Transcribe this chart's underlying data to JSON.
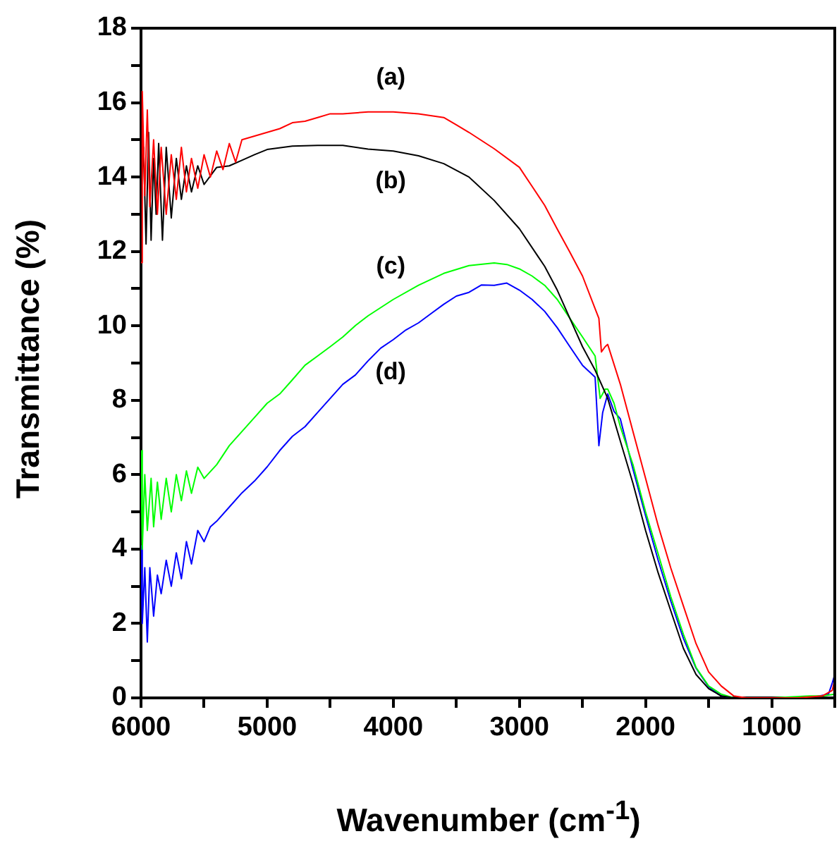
{
  "chart_data": {
    "type": "line",
    "xlabel": "Wavenumber (cm$^{-1}$)",
    "ylabel": "Transmittance (%)",
    "xlim": [
      6000,
      500
    ],
    "ylim": [
      0,
      18
    ],
    "xticks": [
      6000,
      {
        "value": 5500,
        "label": null
      },
      5000,
      {
        "value": 4500,
        "label": null
      },
      4000,
      {
        "value": 3500,
        "label": null
      },
      3000,
      {
        "value": 2500,
        "label": null
      },
      2000,
      {
        "value": 1500,
        "label": null
      },
      1000,
      {
        "value": 500,
        "label": null
      }
    ],
    "yticks": [
      0,
      {
        "value": 1,
        "label": null
      },
      2,
      {
        "value": 3,
        "label": null
      },
      4,
      {
        "value": 5,
        "label": null
      },
      6,
      {
        "value": 7,
        "label": null
      },
      8,
      {
        "value": 9,
        "label": null
      },
      10,
      {
        "value": 11,
        "label": null
      },
      12,
      {
        "value": 13,
        "label": null
      },
      14,
      {
        "value": 15,
        "label": null
      },
      16,
      {
        "value": 17,
        "label": null
      },
      18
    ],
    "grid": false,
    "legend": false,
    "series": [
      {
        "name": "(a)",
        "color": "#ff0000",
        "x": [
          6000,
          5990,
          5970,
          5950,
          5930,
          5900,
          5870,
          5840,
          5800,
          5760,
          5720,
          5680,
          5640,
          5600,
          5550,
          5500,
          5450,
          5400,
          5350,
          5300,
          5250,
          5200,
          5100,
          5000,
          4900,
          4800,
          4700,
          4600,
          4500,
          4400,
          4200,
          4000,
          3800,
          3600,
          3500,
          3400,
          3200,
          3000,
          2900,
          2800,
          2700,
          2600,
          2500,
          2400,
          2370,
          2350,
          2320,
          2300,
          2200,
          2100,
          2000,
          1900,
          1800,
          1700,
          1600,
          1500,
          1400,
          1300,
          1200,
          1000,
          800,
          600,
          520,
          500
        ],
        "values": [
          11.7,
          16.3,
          13.5,
          15.8,
          13.2,
          15.0,
          13.0,
          14.8,
          13.0,
          14.6,
          13.4,
          14.8,
          13.6,
          14.5,
          13.7,
          14.6,
          14.0,
          14.7,
          14.2,
          14.9,
          14.4,
          15.0,
          15.1,
          15.2,
          15.3,
          15.46,
          15.5,
          15.6,
          15.7,
          15.7,
          15.75,
          15.75,
          15.7,
          15.6,
          15.4,
          15.2,
          14.76,
          14.26,
          13.75,
          13.24,
          12.6,
          11.98,
          11.34,
          10.46,
          10.2,
          9.3,
          9.44,
          9.5,
          8.43,
          7.16,
          5.9,
          4.63,
          3.49,
          2.47,
          1.46,
          0.7,
          0.32,
          0.05,
          0,
          0,
          0,
          0.05,
          0.2,
          0.5
        ]
      },
      {
        "name": "(b)",
        "color": "#000000",
        "x": [
          6000,
          5980,
          5960,
          5940,
          5920,
          5900,
          5880,
          5860,
          5830,
          5800,
          5760,
          5720,
          5680,
          5640,
          5600,
          5550,
          5500,
          5400,
          5300,
          5200,
          5100,
          5000,
          4800,
          4600,
          4400,
          4200,
          4000,
          3800,
          3600,
          3400,
          3200,
          3000,
          2800,
          2700,
          2600,
          2500,
          2400,
          2300,
          2200,
          2100,
          2000,
          1900,
          1800,
          1700,
          1600,
          1500,
          1400,
          1300,
          1000,
          600,
          500
        ],
        "values": [
          13.5,
          14.8,
          12.2,
          15.2,
          12.3,
          14.5,
          13.0,
          14.9,
          12.3,
          14.8,
          12.9,
          14.5,
          13.4,
          14.3,
          13.6,
          14.3,
          13.8,
          14.26,
          14.3,
          14.45,
          14.6,
          14.74,
          14.83,
          14.85,
          14.85,
          14.75,
          14.7,
          14.57,
          14.36,
          14.0,
          13.37,
          12.61,
          11.6,
          10.96,
          10.2,
          9.44,
          8.81,
          8.05,
          6.9,
          5.77,
          4.5,
          3.36,
          2.34,
          1.33,
          0.63,
          0.25,
          0.05,
          0,
          0,
          0,
          0
        ]
      },
      {
        "name": "(c)",
        "color": "#00ff00",
        "x": [
          6000,
          5990,
          5970,
          5950,
          5920,
          5900,
          5870,
          5840,
          5800,
          5760,
          5720,
          5680,
          5640,
          5600,
          5550,
          5500,
          5400,
          5300,
          5200,
          5100,
          5000,
          4900,
          4800,
          4700,
          4600,
          4500,
          4400,
          4300,
          4200,
          4000,
          3800,
          3600,
          3400,
          3200,
          3100,
          3000,
          2900,
          2800,
          2700,
          2600,
          2500,
          2400,
          2360,
          2320,
          2300,
          2250,
          2200,
          2100,
          2000,
          1900,
          1800,
          1700,
          1600,
          1500,
          1400,
          1300,
          1000,
          700,
          600,
          500
        ],
        "values": [
          6.65,
          4.0,
          6.0,
          4.5,
          5.9,
          4.6,
          5.8,
          4.8,
          5.9,
          5.0,
          6.0,
          5.3,
          6.1,
          5.5,
          6.2,
          5.9,
          6.27,
          6.78,
          7.16,
          7.54,
          7.92,
          8.17,
          8.55,
          8.94,
          9.19,
          9.44,
          9.7,
          10.01,
          10.27,
          10.71,
          11.09,
          11.41,
          11.62,
          11.69,
          11.65,
          11.53,
          11.34,
          11.09,
          10.71,
          10.2,
          9.7,
          9.19,
          8.05,
          8.3,
          8.3,
          7.92,
          7.29,
          6.27,
          5.0,
          3.87,
          2.72,
          1.71,
          0.82,
          0.32,
          0.1,
          0,
          0,
          0.05,
          0.05,
          0.1
        ]
      },
      {
        "name": "(d)",
        "color": "#0000ff",
        "x": [
          6000,
          5990,
          5970,
          5950,
          5930,
          5900,
          5870,
          5840,
          5800,
          5760,
          5720,
          5680,
          5640,
          5600,
          5550,
          5500,
          5450,
          5400,
          5300,
          5200,
          5100,
          5000,
          4900,
          4800,
          4700,
          4600,
          4500,
          4400,
          4300,
          4200,
          4100,
          4000,
          3900,
          3800,
          3700,
          3600,
          3500,
          3400,
          3300,
          3200,
          3100,
          3000,
          2900,
          2800,
          2700,
          2600,
          2500,
          2400,
          2370,
          2340,
          2300,
          2250,
          2200,
          2100,
          2000,
          1900,
          1800,
          1700,
          1600,
          1500,
          1400,
          1300,
          1000,
          700,
          550,
          520,
          500
        ],
        "values": [
          4.1,
          2.0,
          3.5,
          1.5,
          3.5,
          2.2,
          3.3,
          2.8,
          3.7,
          3.0,
          3.9,
          3.2,
          4.2,
          3.6,
          4.5,
          4.2,
          4.6,
          4.75,
          5.13,
          5.51,
          5.83,
          6.21,
          6.65,
          7.03,
          7.29,
          7.67,
          8.05,
          8.43,
          8.68,
          9.06,
          9.4,
          9.63,
          9.89,
          10.08,
          10.33,
          10.58,
          10.8,
          10.9,
          11.1,
          11.09,
          11.15,
          10.96,
          10.71,
          10.39,
          9.95,
          9.44,
          8.94,
          8.62,
          6.78,
          7.67,
          8.17,
          7.7,
          7.5,
          6.15,
          4.9,
          3.7,
          2.6,
          1.6,
          0.8,
          0.3,
          0.05,
          0,
          0,
          0,
          0.1,
          0.4,
          0.63
        ]
      }
    ]
  }
}
